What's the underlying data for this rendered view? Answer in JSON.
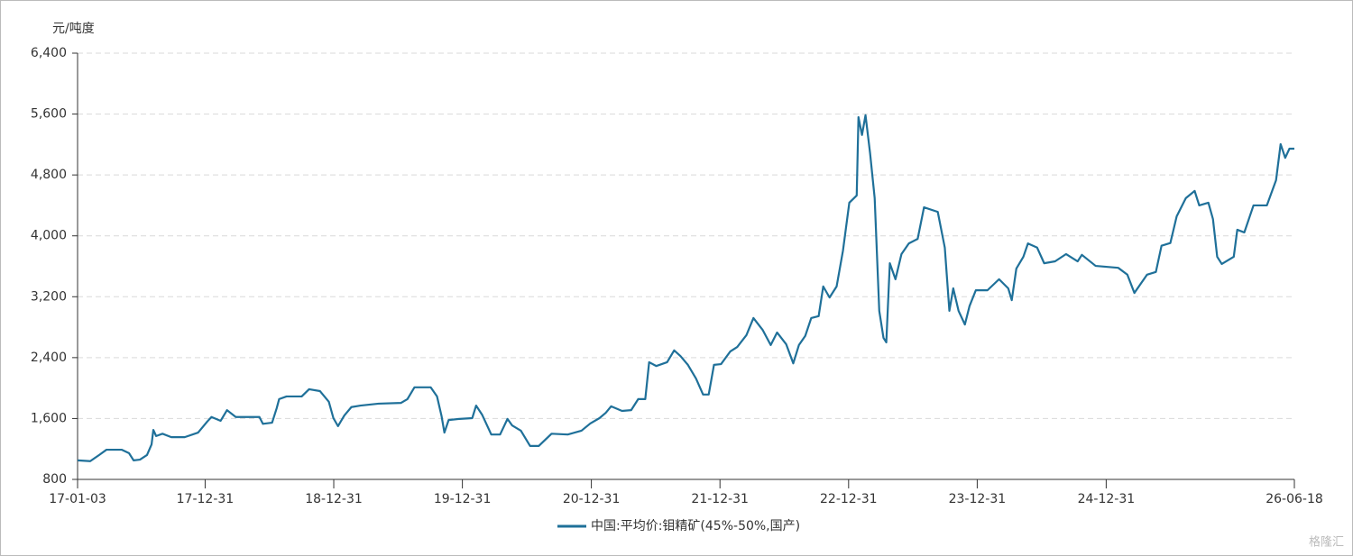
{
  "chart_data": {
    "type": "line",
    "y_label": "元/吨度",
    "watermark": "格隆汇",
    "x": [
      "17-01-03",
      "17-02-08",
      "17-03-05",
      "17-03-26",
      "17-05-08",
      "17-05-29",
      "17-06-11",
      "17-06-29",
      "17-07-19",
      "17-08-01",
      "17-08-06",
      "17-08-14",
      "17-09-01",
      "17-09-26",
      "17-11-03",
      "17-12-11",
      "18-01-06",
      "18-01-18",
      "18-02-13",
      "18-03-03",
      "18-03-28",
      "18-05-01",
      "18-06-03",
      "18-06-13",
      "18-07-09",
      "18-07-22",
      "18-07-29",
      "18-08-19",
      "18-10-01",
      "18-10-22",
      "18-11-22",
      "18-12-17",
      "18-12-30",
      "19-01-12",
      "19-01-30",
      "19-02-19",
      "19-03-17",
      "19-05-07",
      "19-07-10",
      "19-07-28",
      "19-08-17",
      "19-10-02",
      "19-10-20",
      "19-11-02",
      "19-11-10",
      "19-11-22",
      "19-12-23",
      "20-01-28",
      "20-02-08",
      "20-02-25",
      "20-03-22",
      "20-04-16",
      "20-05-07",
      "20-05-20",
      "20-06-14",
      "20-07-10",
      "20-08-04",
      "20-08-22",
      "20-09-09",
      "20-10-25",
      "20-12-03",
      "20-12-28",
      "21-01-23",
      "21-02-10",
      "21-02-25",
      "21-03-28",
      "21-04-23",
      "21-05-13",
      "21-06-02",
      "21-06-13",
      "21-07-03",
      "21-08-03",
      "21-08-23",
      "21-09-10",
      "21-10-01",
      "21-10-24",
      "21-11-13",
      "21-11-29",
      "21-12-14",
      "22-01-03",
      "22-01-29",
      "22-02-18",
      "22-03-16",
      "22-04-05",
      "22-05-01",
      "22-05-24",
      "22-06-11",
      "22-07-07",
      "22-07-27",
      "22-08-12",
      "22-08-30",
      "22-09-16",
      "22-10-07",
      "22-10-20",
      "22-11-07",
      "22-11-27",
      "22-12-15",
      "23-01-02",
      "23-01-23",
      "23-01-28",
      "23-02-07",
      "23-02-17",
      "23-03-02",
      "23-03-15",
      "23-03-28",
      "23-04-09",
      "23-04-17",
      "23-04-27",
      "23-05-13",
      "23-05-30",
      "23-06-20",
      "23-07-15",
      "23-08-02",
      "23-09-10",
      "23-09-30",
      "23-10-13",
      "23-10-24",
      "23-11-08",
      "23-11-26",
      "23-12-09",
      "23-12-27",
      "24-01-29",
      "24-03-02",
      "24-03-28",
      "24-04-07",
      "24-04-20",
      "24-05-10",
      "24-05-23",
      "24-06-18",
      "24-07-08",
      "24-08-08",
      "24-09-08",
      "24-10-11",
      "24-10-23",
      "24-12-01",
      "25-02-03",
      "25-03-01",
      "25-03-21",
      "25-04-08",
      "25-04-26",
      "25-05-21",
      "25-06-06",
      "25-07-01",
      "25-07-19",
      "25-08-14",
      "25-09-08",
      "25-09-21",
      "25-10-17",
      "25-10-30",
      "25-11-11",
      "25-11-24",
      "25-12-28",
      "26-01-07",
      "26-01-27",
      "26-02-22",
      "26-04-01",
      "26-04-27",
      "26-05-10",
      "26-05-23",
      "26-06-04",
      "26-06-18"
    ],
    "series": [
      {
        "name": "中国:平均价:钼精矿(45%-50%,国产)",
        "color": "#1f7099",
        "values": [
          1050,
          1040,
          1120,
          1190,
          1190,
          1145,
          1050,
          1060,
          1120,
          1260,
          1450,
          1370,
          1400,
          1355,
          1355,
          1415,
          1560,
          1620,
          1570,
          1710,
          1620,
          1620,
          1620,
          1530,
          1545,
          1735,
          1855,
          1890,
          1890,
          1985,
          1960,
          1820,
          1605,
          1500,
          1640,
          1750,
          1770,
          1795,
          1805,
          1855,
          2010,
          2010,
          1890,
          1630,
          1415,
          1580,
          1595,
          1605,
          1770,
          1650,
          1390,
          1390,
          1595,
          1510,
          1440,
          1240,
          1240,
          1320,
          1400,
          1390,
          1440,
          1535,
          1605,
          1675,
          1760,
          1700,
          1710,
          1855,
          1855,
          2340,
          2290,
          2340,
          2495,
          2420,
          2305,
          2125,
          1915,
          1915,
          2305,
          2315,
          2480,
          2540,
          2695,
          2920,
          2765,
          2565,
          2730,
          2575,
          2325,
          2565,
          2685,
          2920,
          2945,
          3335,
          3190,
          3335,
          3805,
          4435,
          4530,
          5560,
          5325,
          5585,
          5085,
          4495,
          3015,
          2660,
          2600,
          3640,
          3430,
          3760,
          3900,
          3960,
          4375,
          4315,
          3845,
          3015,
          3310,
          3015,
          2835,
          3075,
          3285,
          3285,
          3430,
          3310,
          3155,
          3570,
          3725,
          3900,
          3845,
          3640,
          3665,
          3760,
          3665,
          3750,
          3605,
          3580,
          3490,
          3250,
          3370,
          3490,
          3525,
          3870,
          3905,
          4255,
          4495,
          4590,
          4400,
          4435,
          4220,
          3725,
          3630,
          3725,
          4080,
          4045,
          4400,
          4400,
          4730,
          5205,
          5025,
          5145,
          5145
        ]
      }
    ],
    "xlim": [
      "17-01-03",
      "26-06-18"
    ],
    "xticks": [
      "17-01-03",
      "17-12-31",
      "18-12-31",
      "19-12-31",
      "20-12-31",
      "21-12-31",
      "22-12-31",
      "23-12-31",
      "24-12-31",
      "26-06-18"
    ],
    "ylim": [
      800,
      6400
    ],
    "yticks": [
      800,
      {
        "value": 1600,
        "label": "1,600"
      },
      {
        "value": 2400,
        "label": "2,400"
      },
      {
        "value": 3200,
        "label": "3,200"
      },
      {
        "value": 4000,
        "label": "4,000"
      },
      {
        "value": 4800,
        "label": "4,800"
      },
      {
        "value": 5600,
        "label": "5,600"
      },
      {
        "value": 6400,
        "label": "6,400"
      }
    ],
    "grid": true
  }
}
